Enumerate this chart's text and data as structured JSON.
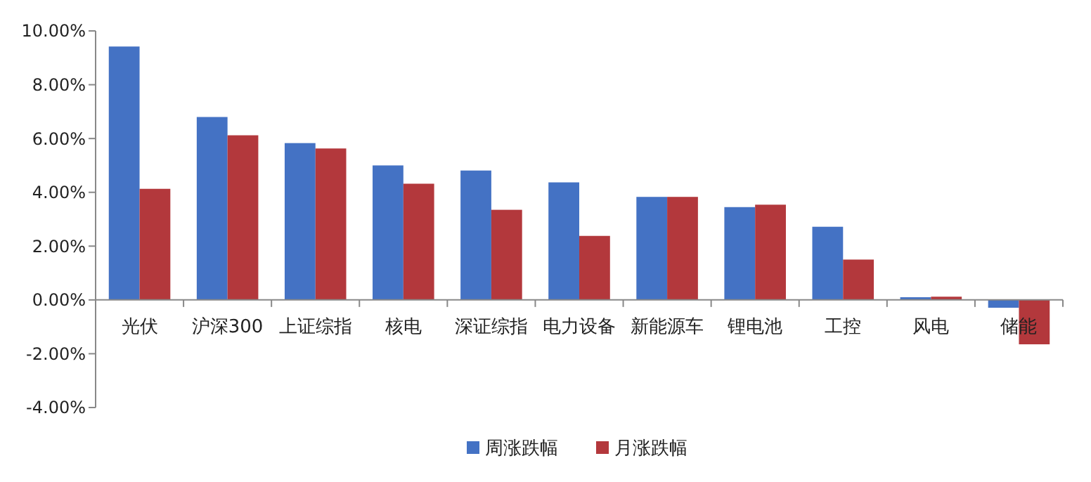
{
  "chart_data": {
    "type": "bar",
    "categories": [
      "光伏",
      "沪深300",
      "上证综指",
      "核电",
      "深证综指",
      "电力设备",
      "新能源车",
      "锂电池",
      "工控",
      "风电",
      "储能"
    ],
    "series": [
      {
        "name": "周涨跌幅",
        "color": "#4472c4",
        "values": [
          9.42,
          6.8,
          5.83,
          5.0,
          4.81,
          4.37,
          3.83,
          3.45,
          2.72,
          0.1,
          -0.29
        ]
      },
      {
        "name": "月涨跌幅",
        "color": "#b3383c",
        "values": [
          4.13,
          6.12,
          5.63,
          4.32,
          3.35,
          2.38,
          3.83,
          3.54,
          1.5,
          0.12,
          -1.65
        ]
      }
    ],
    "ylim": [
      -4,
      10
    ],
    "yticks": [
      {
        "value": -4,
        "label": "-4.00%"
      },
      {
        "value": -2,
        "label": "-2.00%"
      },
      {
        "value": 0,
        "label": "0.00%"
      },
      {
        "value": 2,
        "label": "2.00%"
      },
      {
        "value": 4,
        "label": "4.00%"
      },
      {
        "value": 6,
        "label": "6.00%"
      },
      {
        "value": 8,
        "label": "8.00%"
      },
      {
        "value": 10,
        "label": "10.00%"
      }
    ],
    "legend": "bottom"
  }
}
